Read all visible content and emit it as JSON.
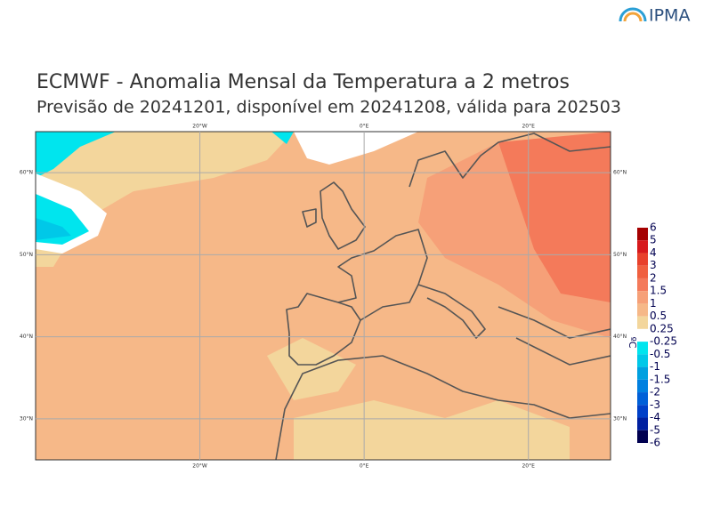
{
  "header": {
    "logo": "IPMA",
    "title": "ECMWF - Anomalia Mensal da Temperatura a 2 metros",
    "subtitle": "Previsão de 20241201, disponível em 20241208, válida para 202503"
  },
  "map": {
    "lonlim": [
      -40,
      30
    ],
    "latlim": [
      25,
      65
    ],
    "lon_ticks": [
      {
        "value": -20,
        "label": "20°W"
      },
      {
        "value": 0,
        "label": "0°E"
      },
      {
        "value": 20,
        "label": "20°E"
      }
    ],
    "lat_ticks": [
      {
        "value": 60,
        "label": "60°N"
      },
      {
        "value": 50,
        "label": "50°N"
      },
      {
        "value": 40,
        "label": "40°N"
      },
      {
        "value": 30,
        "label": "30°N"
      }
    ]
  },
  "colorbar": {
    "unit": "ºC",
    "levels": [
      6,
      5,
      4,
      3,
      2,
      1.5,
      1,
      0.5,
      0.25,
      -0.25,
      -0.5,
      -1,
      -1.5,
      -2,
      -3,
      -4,
      -5,
      -6
    ],
    "colors": [
      "#a50000",
      "#d7191c",
      "#e8412b",
      "#f0603f",
      "#f47a5a",
      "#f6a078",
      "#f6b888",
      "#f3d69c",
      "#ffffff",
      "#00e5ee",
      "#00c8e8",
      "#00a0e0",
      "#0080e0",
      "#0060d8",
      "#0040c8",
      "#0020a0",
      "#000050"
    ]
  }
}
